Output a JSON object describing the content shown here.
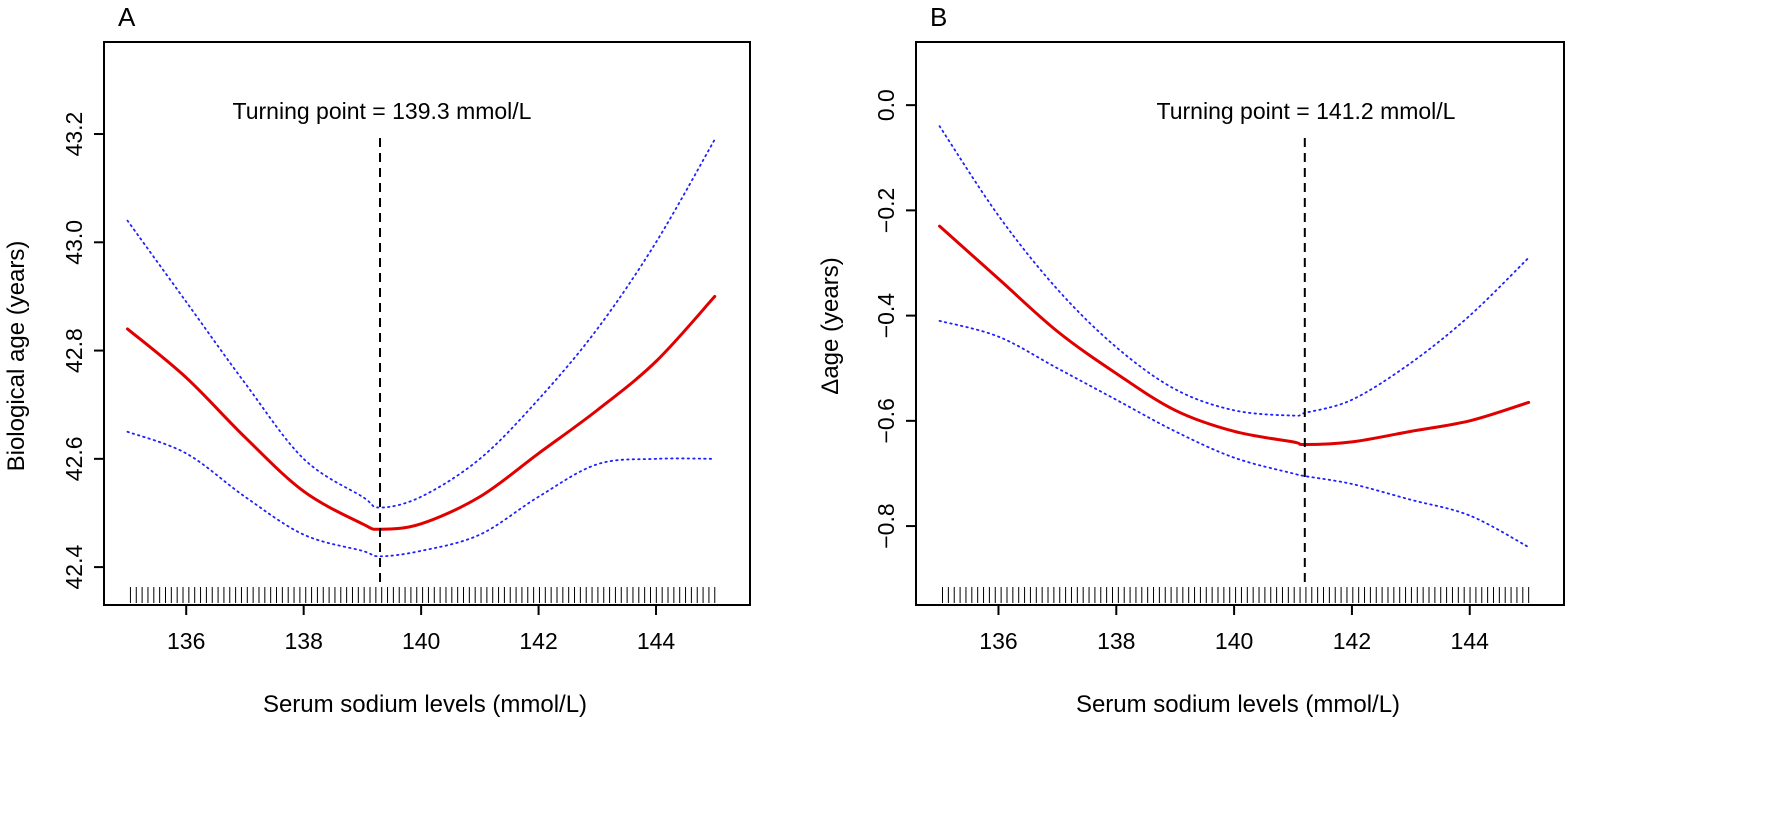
{
  "chart_data": [
    {
      "type": "line",
      "panel_label": "A",
      "xlabel": "Serum sodium levels (mmol/L)",
      "ylabel": "Biological age (years)",
      "xlim": [
        134.6,
        145.6
      ],
      "ylim": [
        42.33,
        43.37
      ],
      "x_ticks": [
        136,
        138,
        140,
        142,
        144
      ],
      "y_ticks": [
        42.4,
        42.6,
        42.8,
        43.0,
        43.2
      ],
      "y_tick_labels": [
        "42.4",
        "42.6",
        "42.8",
        "43.0",
        "43.2"
      ],
      "annotation": "Turning point = 139.3 mmol/L",
      "turning_point": 139.3,
      "series": [
        {
          "name": "estimate",
          "style": "solid",
          "color": "#e00000",
          "x": [
            135,
            136,
            137,
            138,
            139,
            139.3,
            140,
            141,
            142,
            143,
            144,
            145
          ],
          "y": [
            42.84,
            42.75,
            42.64,
            42.54,
            42.48,
            42.47,
            42.48,
            42.53,
            42.61,
            42.69,
            42.78,
            42.9
          ]
        },
        {
          "name": "upper 95% CI",
          "style": "dotted",
          "color": "#2020ff",
          "x": [
            135,
            136,
            137,
            138,
            139,
            139.3,
            140,
            141,
            142,
            143,
            144,
            145
          ],
          "y": [
            43.04,
            42.89,
            42.74,
            42.6,
            42.53,
            42.51,
            42.53,
            42.6,
            42.71,
            42.84,
            43.0,
            43.19
          ]
        },
        {
          "name": "lower 95% CI",
          "style": "dotted",
          "color": "#2020ff",
          "x": [
            135,
            136,
            137,
            138,
            139,
            139.3,
            140,
            141,
            142,
            143,
            144,
            145
          ],
          "y": [
            42.65,
            42.61,
            42.53,
            42.46,
            42.43,
            42.42,
            42.43,
            42.46,
            42.53,
            42.59,
            42.6,
            42.6
          ]
        }
      ]
    },
    {
      "type": "line",
      "panel_label": "B",
      "xlabel": "Serum sodium levels (mmol/L)",
      "ylabel": "Δage (years)",
      "xlim": [
        134.6,
        145.6
      ],
      "ylim": [
        -0.95,
        0.12
      ],
      "x_ticks": [
        136,
        138,
        140,
        142,
        144
      ],
      "y_ticks": [
        -0.8,
        -0.6,
        -0.4,
        -0.2,
        0.0
      ],
      "y_tick_labels": [
        "−0.8",
        "−0.6",
        "−0.4",
        "−0.2",
        "0.0"
      ],
      "annotation": "Turning point = 141.2 mmol/L",
      "turning_point": 141.2,
      "series": [
        {
          "name": "estimate",
          "style": "solid",
          "color": "#e00000",
          "x": [
            135,
            136,
            137,
            138,
            139,
            140,
            141,
            141.2,
            142,
            143,
            144,
            145
          ],
          "y": [
            -0.23,
            -0.33,
            -0.43,
            -0.51,
            -0.58,
            -0.62,
            -0.64,
            -0.645,
            -0.64,
            -0.62,
            -0.6,
            -0.565
          ]
        },
        {
          "name": "upper 95% CI",
          "style": "dotted",
          "color": "#2020ff",
          "x": [
            135,
            136,
            137,
            138,
            139,
            140,
            141,
            141.2,
            142,
            143,
            144,
            145
          ],
          "y": [
            -0.04,
            -0.21,
            -0.35,
            -0.46,
            -0.54,
            -0.58,
            -0.59,
            -0.585,
            -0.56,
            -0.49,
            -0.4,
            -0.29
          ]
        },
        {
          "name": "lower 95% CI",
          "style": "dotted",
          "color": "#2020ff",
          "x": [
            135,
            136,
            137,
            138,
            139,
            140,
            141,
            141.2,
            142,
            143,
            144,
            145
          ],
          "y": [
            -0.41,
            -0.44,
            -0.5,
            -0.56,
            -0.62,
            -0.67,
            -0.7,
            -0.705,
            -0.72,
            -0.75,
            -0.78,
            -0.84
          ]
        }
      ]
    }
  ]
}
